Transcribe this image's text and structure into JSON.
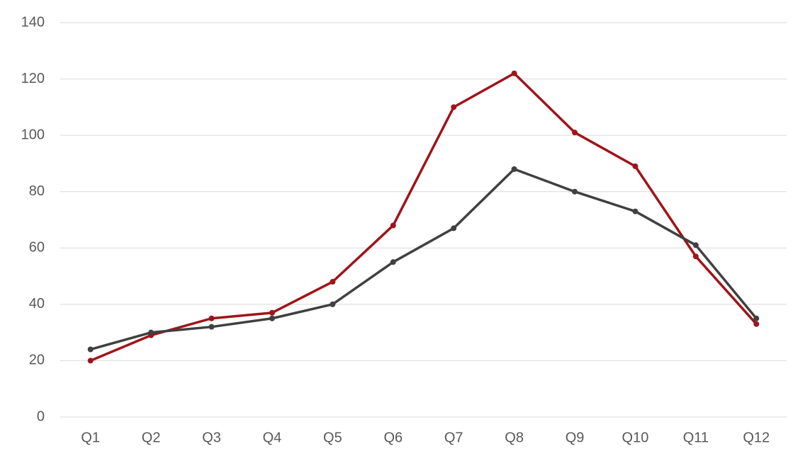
{
  "chart_data": {
    "type": "line",
    "categories": [
      "Q1",
      "Q2",
      "Q3",
      "Q4",
      "Q5",
      "Q6",
      "Q7",
      "Q8",
      "Q9",
      "Q10",
      "Q11",
      "Q12"
    ],
    "series": [
      {
        "color": "#a0131a",
        "values": [
          20,
          29,
          35,
          37,
          48,
          68,
          110,
          122,
          101,
          89,
          57,
          33
        ]
      },
      {
        "color": "#404040",
        "values": [
          24,
          30,
          32,
          35,
          40,
          55,
          67,
          88,
          80,
          73,
          61,
          35
        ]
      }
    ],
    "ylim": [
      0,
      140
    ],
    "yticks": [
      0,
      20,
      40,
      60,
      80,
      100,
      120,
      140
    ],
    "grid": true
  }
}
